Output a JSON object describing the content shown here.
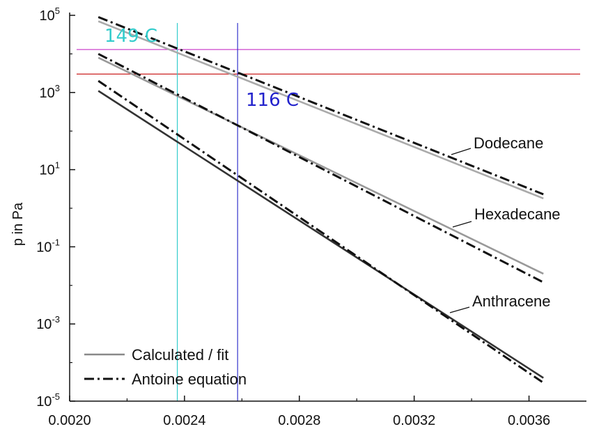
{
  "chart_data": {
    "type": "line",
    "xlabel": "",
    "ylabel": "p in Pa",
    "y_scale": "log",
    "xlim": [
      0.002,
      0.0038
    ],
    "ylim": [
      1e-05,
      100000
    ],
    "x_ticks": [
      "0.0020",
      "0.0024",
      "0.0028",
      "0.0032",
      "0.0036"
    ],
    "y_tick_mantissa": "10",
    "y_tick_exponents": [
      "5",
      "3",
      "1",
      "-1",
      "-3",
      "-5"
    ],
    "grid": false,
    "legend": {
      "placement": "bottom-left",
      "entries": [
        {
          "label": "Calculated / fit",
          "style": "solid",
          "color": "#888888"
        },
        {
          "label": "Antoine equation",
          "style": "dash-dot",
          "color": "#111111"
        }
      ]
    },
    "series": [
      {
        "name": "Dodecane",
        "kind": "calculated",
        "color": "#aaaaaa",
        "x": [
          0.0021,
          0.00365
        ],
        "y": [
          70000,
          1.8
        ]
      },
      {
        "name": "Dodecane",
        "kind": "antoine",
        "color": "#111111",
        "x": [
          0.0021,
          0.00365
        ],
        "y": [
          90000,
          2.3
        ]
      },
      {
        "name": "Hexadecane",
        "kind": "calculated",
        "color": "#999999",
        "x": [
          0.0021,
          0.00365
        ],
        "y": [
          8000,
          0.02
        ]
      },
      {
        "name": "Hexadecane",
        "kind": "antoine",
        "color": "#111111",
        "x": [
          0.0021,
          0.00365
        ],
        "y": [
          10000,
          0.012
        ]
      },
      {
        "name": "Anthracene",
        "kind": "calculated",
        "color": "#333333",
        "x": [
          0.0021,
          0.00365
        ],
        "y": [
          1100,
          4e-05
        ]
      },
      {
        "name": "Anthracene",
        "kind": "antoine",
        "color": "#111111",
        "x": [
          0.0021,
          0.00365
        ],
        "y": [
          2000,
          3e-05
        ]
      }
    ],
    "series_labels": [
      "Dodecane",
      "Hexadecane",
      "Anthracene"
    ],
    "reference_lines": [
      {
        "orientation": "horizontal",
        "value": 13000,
        "color": "#cc44cc"
      },
      {
        "orientation": "horizontal",
        "value": 3000,
        "color": "#cc2222"
      },
      {
        "orientation": "vertical",
        "value": 0.002375,
        "color": "#33cccc"
      },
      {
        "orientation": "vertical",
        "value": 0.002585,
        "color": "#3333cc"
      }
    ],
    "annotations": [
      {
        "text": "149 C",
        "color": "#33cccc"
      },
      {
        "text": "116 C",
        "color": "#2222cc"
      }
    ]
  }
}
